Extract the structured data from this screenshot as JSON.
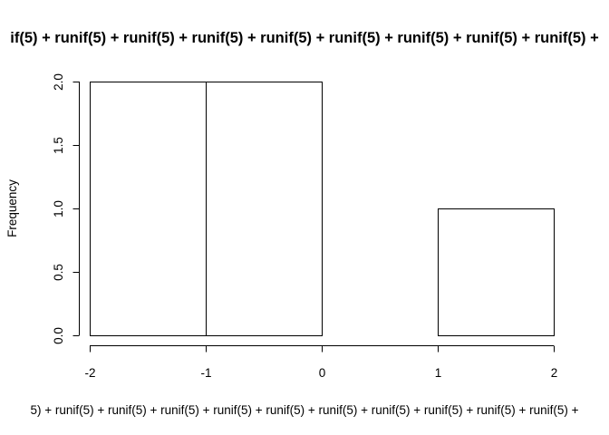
{
  "chart_data": {
    "type": "bar",
    "title": "if(5) + runif(5) + runif(5) + runif(5) + runif(5) + runif(5) + runif(5) + runif(5) + runif(5) +",
    "xlabel": "5) + runif(5) + runif(5) + runif(5) + runif(5) + runif(5) + runif(5) + runif(5) + runif(5) + runif(5) + runif(5) +",
    "ylabel": "Frequency",
    "bins": [
      {
        "from": -2,
        "to": -1,
        "count": 2
      },
      {
        "from": -1,
        "to": 0,
        "count": 2
      },
      {
        "from": 0,
        "to": 1,
        "count": 0
      },
      {
        "from": 1,
        "to": 2,
        "count": 1
      }
    ],
    "xlim": [
      -2,
      2
    ],
    "ylim": [
      0,
      2
    ],
    "x_ticks": [
      "-2",
      "-1",
      "0",
      "1",
      "2"
    ],
    "y_ticks": [
      "0.0",
      "0.5",
      "1.0",
      "1.5",
      "2.0"
    ],
    "grid": false,
    "legend": "none",
    "colors": {
      "bar_fill": "#ffffff",
      "bar_stroke": "#000000"
    }
  }
}
